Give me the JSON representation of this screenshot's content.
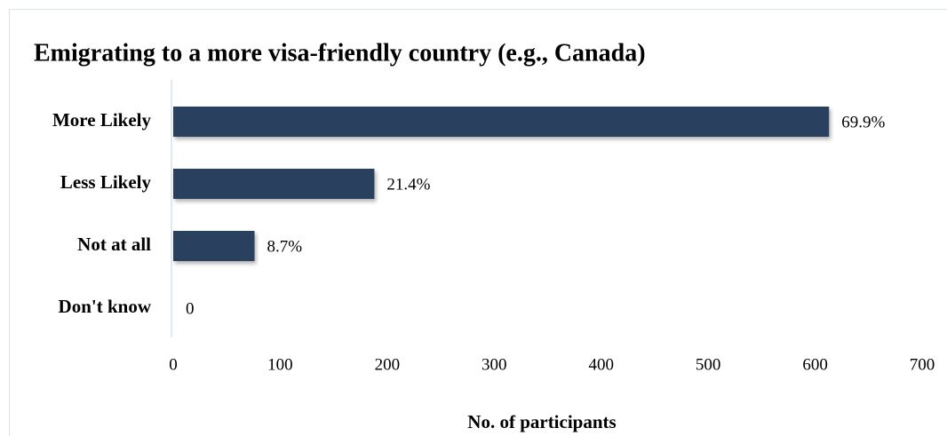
{
  "chart_data": {
    "type": "bar",
    "orientation": "horizontal",
    "title": "Emigrating to a more visa-friendly country (e.g., Canada)",
    "x_label": "No. of participants",
    "categories": [
      "More Likely",
      "Less Likely",
      "Not at all",
      "Don't know"
    ],
    "values": [
      613,
      188,
      76,
      0
    ],
    "value_labels": [
      "69.9%",
      "21.4%",
      "8.7%",
      "0"
    ],
    "color": "#293f5e",
    "xlim": [
      0,
      700
    ],
    "xticks": [
      0,
      100,
      200,
      300,
      400,
      500,
      600,
      700
    ],
    "grid": false
  }
}
